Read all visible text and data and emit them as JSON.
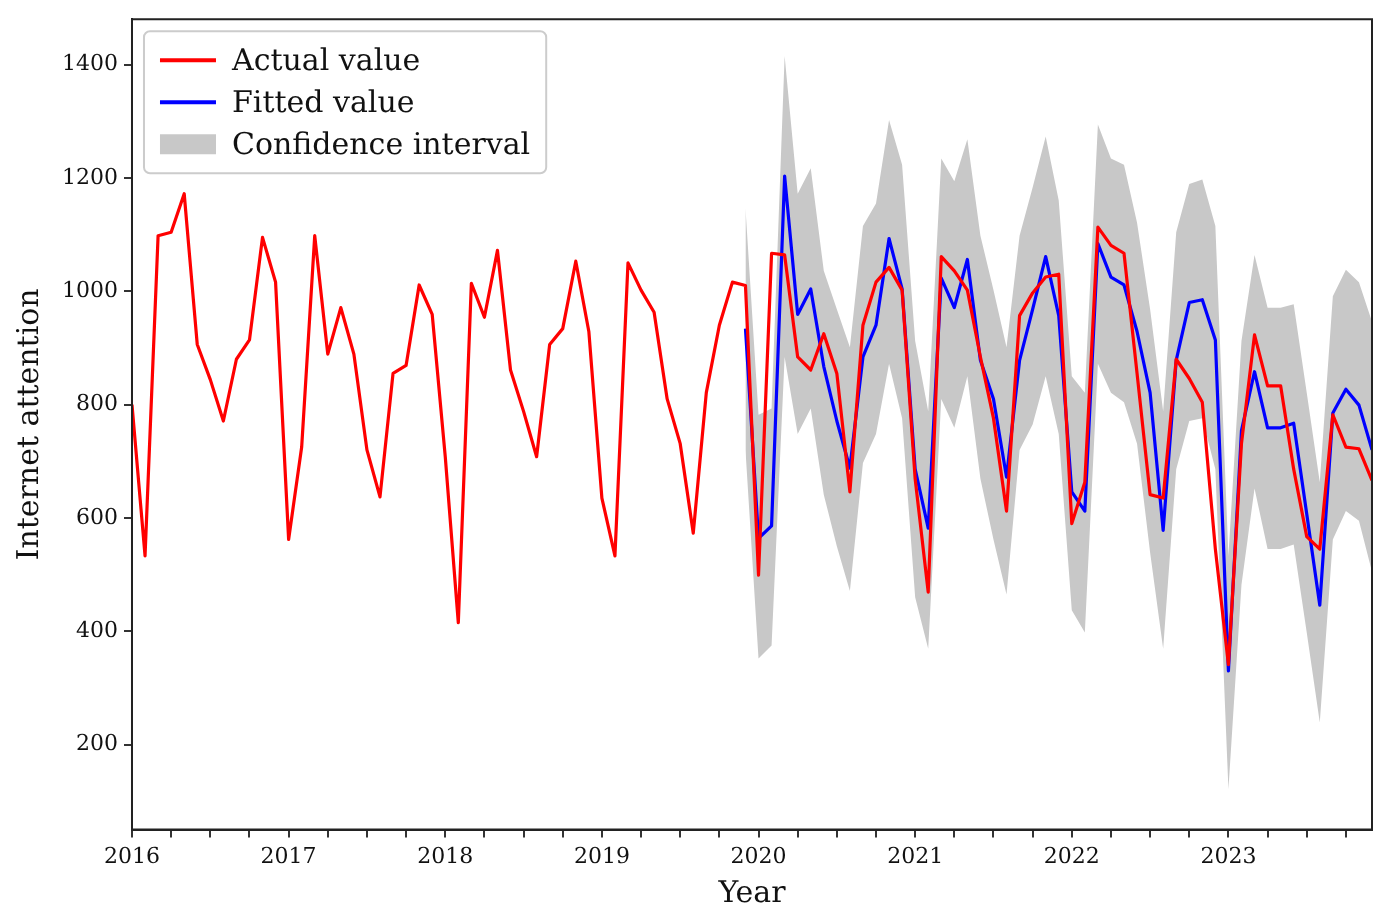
{
  "chart_data": {
    "type": "line",
    "xlabel": "Year",
    "ylabel": "Internet attention",
    "x": [
      "2016-01",
      "2016-02",
      "2016-03",
      "2016-04",
      "2016-05",
      "2016-06",
      "2016-07",
      "2016-08",
      "2016-09",
      "2016-10",
      "2016-11",
      "2016-12",
      "2017-01",
      "2017-02",
      "2017-03",
      "2017-04",
      "2017-05",
      "2017-06",
      "2017-07",
      "2017-08",
      "2017-09",
      "2017-10",
      "2017-11",
      "2017-12",
      "2018-01",
      "2018-02",
      "2018-03",
      "2018-04",
      "2018-05",
      "2018-06",
      "2018-07",
      "2018-08",
      "2018-09",
      "2018-10",
      "2018-11",
      "2018-12",
      "2019-01",
      "2019-02",
      "2019-03",
      "2019-04",
      "2019-05",
      "2019-06",
      "2019-07",
      "2019-08",
      "2019-09",
      "2019-10",
      "2019-11",
      "2019-12",
      "2020-01",
      "2020-02",
      "2020-03",
      "2020-04",
      "2020-05",
      "2020-06",
      "2020-07",
      "2020-08",
      "2020-09",
      "2020-10",
      "2020-11",
      "2020-12",
      "2021-01",
      "2021-02",
      "2021-03",
      "2021-04",
      "2021-05",
      "2021-06",
      "2021-07",
      "2021-08",
      "2021-09",
      "2021-10",
      "2021-11",
      "2021-12",
      "2022-01",
      "2022-02",
      "2022-03",
      "2022-04",
      "2022-05",
      "2022-06",
      "2022-07",
      "2022-08",
      "2022-09",
      "2022-10",
      "2022-11",
      "2022-12",
      "2023-01",
      "2023-02",
      "2023-03",
      "2023-04",
      "2023-05",
      "2023-06",
      "2023-07",
      "2023-08",
      "2023-09",
      "2023-10",
      "2023-11",
      "2023-12"
    ],
    "series": [
      {
        "name": "Actual value",
        "color": "#ff0000",
        "values": [
          800,
          533,
          1098,
          1104,
          1172,
          906,
          844,
          771,
          880,
          914,
          1095,
          1016,
          562,
          725,
          1098,
          889,
          971,
          889,
          720,
          637,
          855,
          869,
          1011,
          959,
          708,
          415,
          1014,
          954,
          1072,
          861,
          788,
          708,
          906,
          934,
          1053,
          929,
          635,
          533,
          1050,
          1002,
          963,
          810,
          731,
          573,
          821,
          940,
          1016,
          1010,
          499,
          1067,
          1064,
          884,
          861,
          925,
          855,
          646,
          940,
          1016,
          1042,
          1002,
          669,
          469,
          1061,
          1036,
          1002,
          884,
          776,
          612,
          957,
          997,
          1025,
          1030,
          590,
          663,
          1113,
          1081,
          1067,
          855,
          641,
          635,
          880,
          846,
          804,
          545,
          341,
          731,
          923,
          833,
          833,
          686,
          567,
          545,
          782,
          725,
          722,
          666
        ]
      },
      {
        "name": "Fitted value",
        "color": "#0000ff",
        "values": [
          null,
          null,
          null,
          null,
          null,
          null,
          null,
          null,
          null,
          null,
          null,
          null,
          null,
          null,
          null,
          null,
          null,
          null,
          null,
          null,
          null,
          null,
          null,
          null,
          null,
          null,
          null,
          null,
          null,
          null,
          null,
          null,
          null,
          null,
          null,
          null,
          null,
          null,
          null,
          null,
          null,
          null,
          null,
          null,
          null,
          null,
          null,
          934,
          564,
          586,
          1203,
          959,
          1004,
          867,
          771,
          688,
          884,
          940,
          1093,
          1004,
          686,
          582,
          1023,
          971,
          1056,
          878,
          810,
          672,
          878,
          968,
          1061,
          957,
          646,
          612,
          1084,
          1025,
          1011,
          929,
          821,
          578,
          878,
          980,
          985,
          914,
          330,
          754,
          858,
          759,
          759,
          767,
          607,
          446,
          785,
          827,
          799,
          720
        ]
      },
      {
        "name": "Confidence interval",
        "type": "area",
        "color": "#c8c8c8",
        "values": [
          null,
          null,
          null,
          null,
          null,
          null,
          null,
          null,
          null,
          null,
          null,
          null,
          null,
          null,
          null,
          null,
          null,
          null,
          null,
          null,
          null,
          null,
          null,
          null,
          null,
          null,
          null,
          null,
          null,
          null,
          null,
          null,
          null,
          null,
          null,
          null,
          null,
          null,
          null,
          null,
          null,
          null,
          null,
          null,
          null,
          null,
          null,
          null,
          null,
          null,
          null,
          null,
          null,
          null,
          null,
          null,
          null,
          null,
          null,
          null,
          null,
          null,
          null,
          null,
          null,
          null,
          null,
          null,
          null,
          null,
          null,
          null,
          null,
          null,
          null,
          null,
          null,
          null,
          null,
          null,
          null,
          null,
          null,
          null,
          null,
          null,
          null,
          null,
          null,
          null,
          null,
          null,
          null,
          null,
          null,
          null
        ],
        "lower": [
          null,
          null,
          null,
          null,
          null,
          null,
          null,
          null,
          null,
          null,
          null,
          null,
          null,
          null,
          null,
          null,
          null,
          null,
          null,
          null,
          null,
          null,
          null,
          null,
          null,
          null,
          null,
          null,
          null,
          null,
          null,
          null,
          null,
          null,
          null,
          null,
          null,
          null,
          null,
          null,
          null,
          null,
          null,
          null,
          null,
          null,
          null,
          720,
          352,
          375,
          884,
          748,
          793,
          641,
          550,
          471,
          697,
          748,
          872,
          776,
          460,
          369,
          810,
          759,
          850,
          669,
          562,
          465,
          720,
          765,
          850,
          748,
          437,
          398,
          872,
          821,
          804,
          731,
          539,
          369,
          686,
          771,
          776,
          686,
          121,
          482,
          652,
          545,
          545,
          553,
          398,
          239,
          562,
          612,
          595,
          505
        ],
        "upper": [
          null,
          null,
          null,
          null,
          null,
          null,
          null,
          null,
          null,
          null,
          null,
          null,
          null,
          null,
          null,
          null,
          null,
          null,
          null,
          null,
          null,
          null,
          null,
          null,
          null,
          null,
          null,
          null,
          null,
          null,
          null,
          null,
          null,
          null,
          null,
          null,
          null,
          null,
          null,
          null,
          null,
          null,
          null,
          null,
          null,
          null,
          null,
          1147,
          782,
          793,
          1415,
          1172,
          1217,
          1036,
          968,
          901,
          1115,
          1155,
          1302,
          1223,
          912,
          788,
          1234,
          1194,
          1268,
          1098,
          1002,
          901,
          1098,
          1183,
          1273,
          1160,
          850,
          821,
          1294,
          1234,
          1223,
          1121,
          968,
          788,
          1104,
          1189,
          1197,
          1115,
          533,
          912,
          1064,
          971,
          971,
          977,
          821,
          663,
          991,
          1038,
          1016,
          946
        ]
      }
    ],
    "xlim": [
      "2016-01",
      "2023-12"
    ],
    "xticks": [
      {
        "value": "2016-01",
        "label": "2016"
      },
      {
        "value": "2016-04",
        "label": null
      },
      {
        "value": "2016-07",
        "label": null
      },
      {
        "value": "2016-10",
        "label": null
      },
      {
        "value": "2017-01",
        "label": "2017"
      },
      {
        "value": "2017-04",
        "label": null
      },
      {
        "value": "2017-07",
        "label": null
      },
      {
        "value": "2017-10",
        "label": null
      },
      {
        "value": "2018-01",
        "label": "2018"
      },
      {
        "value": "2018-04",
        "label": null
      },
      {
        "value": "2018-07",
        "label": null
      },
      {
        "value": "2018-10",
        "label": null
      },
      {
        "value": "2019-01",
        "label": "2019"
      },
      {
        "value": "2019-04",
        "label": null
      },
      {
        "value": "2019-07",
        "label": null
      },
      {
        "value": "2019-10",
        "label": null
      },
      {
        "value": "2020-01",
        "label": "2020"
      },
      {
        "value": "2020-04",
        "label": null
      },
      {
        "value": "2020-07",
        "label": null
      },
      {
        "value": "2020-10",
        "label": null
      },
      {
        "value": "2021-01",
        "label": "2021"
      },
      {
        "value": "2021-04",
        "label": null
      },
      {
        "value": "2021-07",
        "label": null
      },
      {
        "value": "2021-10",
        "label": null
      },
      {
        "value": "2022-01",
        "label": "2022"
      },
      {
        "value": "2022-04",
        "label": null
      },
      {
        "value": "2022-07",
        "label": null
      },
      {
        "value": "2022-10",
        "label": null
      },
      {
        "value": "2023-01",
        "label": "2023"
      },
      {
        "value": "2023-04",
        "label": null
      },
      {
        "value": "2023-07",
        "label": null
      },
      {
        "value": "2023-10",
        "label": null
      }
    ],
    "ylim": [
      50,
      1480
    ],
    "yticks": [
      200,
      400,
      600,
      800,
      1000,
      1200,
      1400
    ],
    "legend": "top left",
    "grid": false,
    "marker": "none",
    "line_style": "solid"
  }
}
